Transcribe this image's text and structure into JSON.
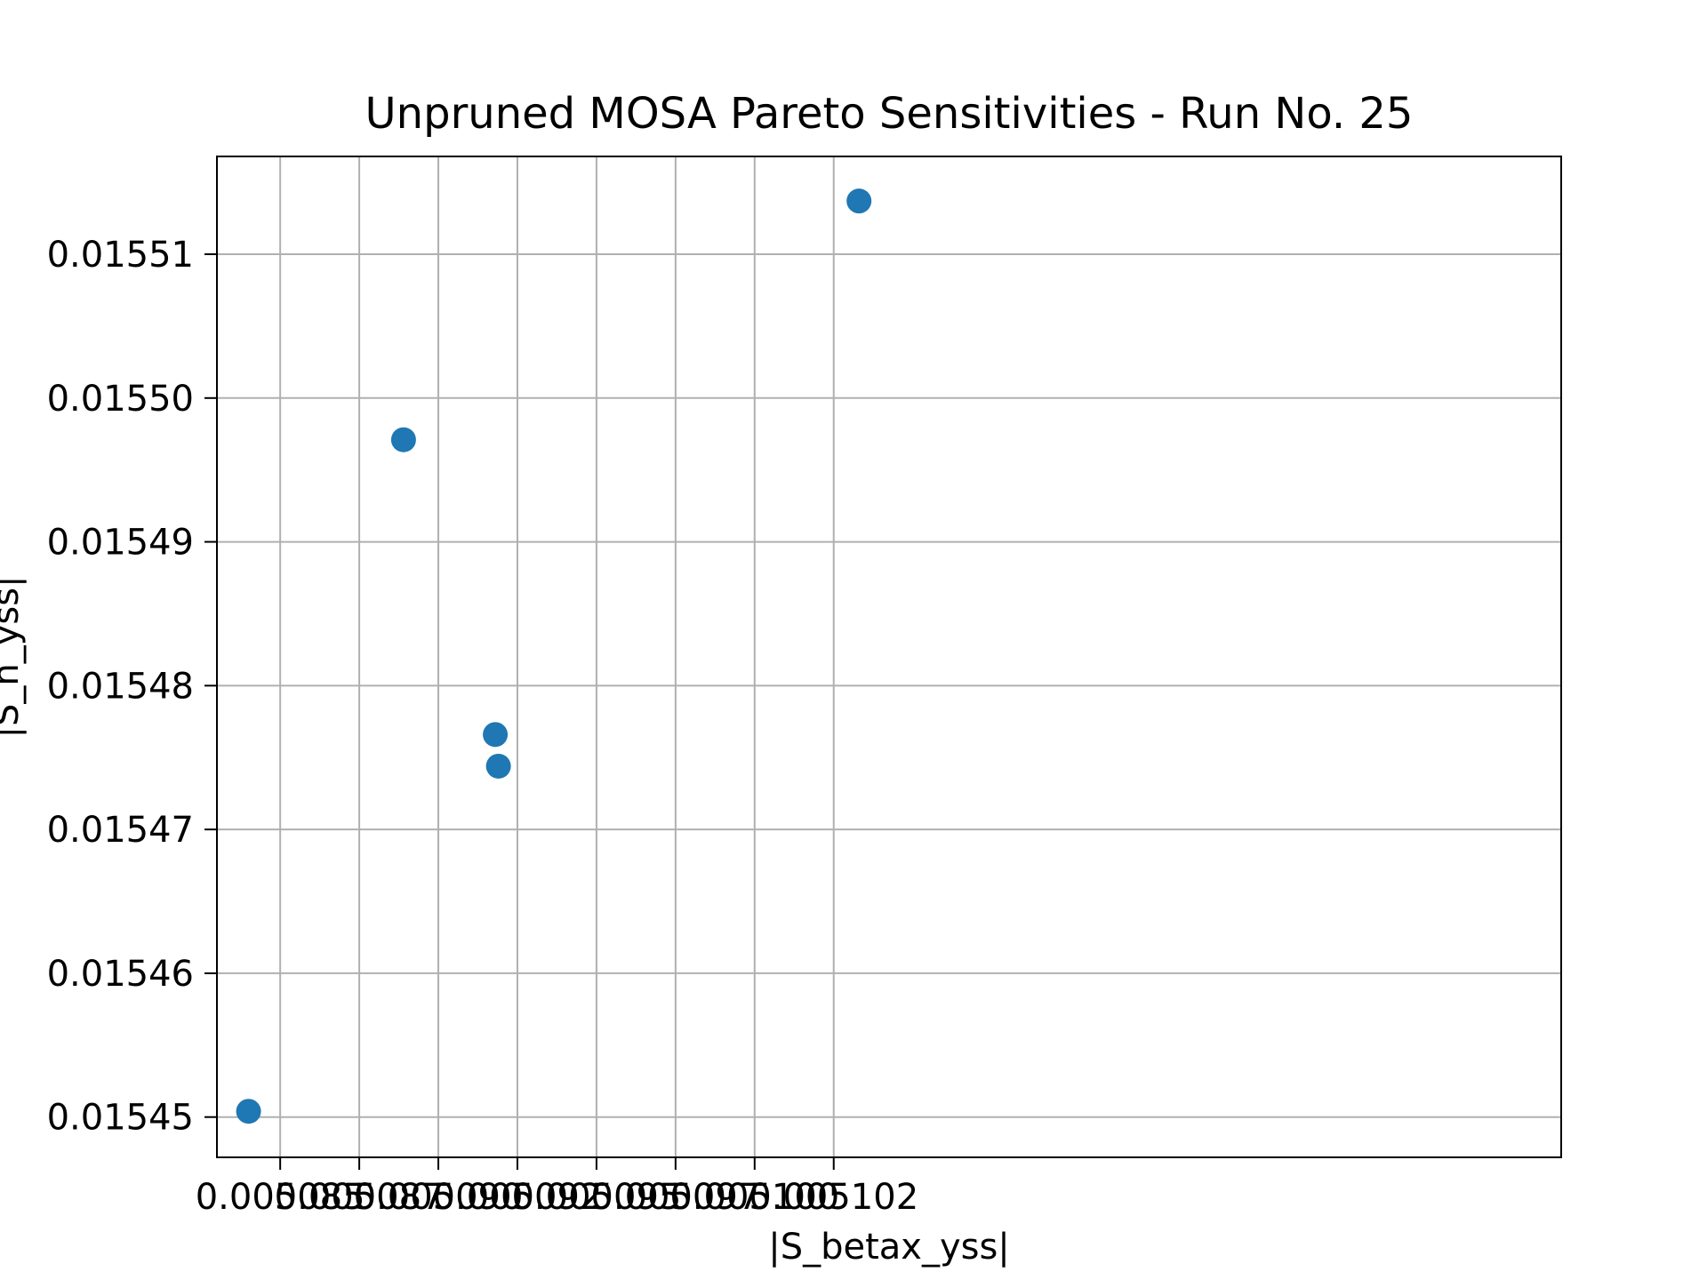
{
  "chart_data": {
    "type": "scatter",
    "title": "Unpruned MOSA Pareto Sensitivities - Run No. 25",
    "xlabel": "|S_betax_yss|",
    "ylabel": "|S_n_yss|",
    "xlim": [
      0.005083,
      0.0051255
    ],
    "ylim": [
      0.0154472,
      0.0155168
    ],
    "grid": true,
    "legend": "none",
    "color": "#1f77b4",
    "x_ticks": [
      0.005085,
      0.005088,
      0.00509,
      0.005092,
      0.005095,
      0.005098,
      0.0051,
      0.005102
    ],
    "x_tick_labels": [
      "0.005085",
      "0.005087",
      "0.005090",
      "0.005092",
      "0.005095",
      "0.005097",
      "0.005100",
      "0.005102"
    ],
    "x_tick_values": [
      0.005085,
      0.0050875,
      0.00509,
      0.0050925,
      0.005095,
      0.0050975,
      0.0051,
      0.0051025
    ],
    "y_tick_values": [
      0.01545,
      0.01546,
      0.01547,
      0.01548,
      0.01549,
      0.0155,
      0.01551
    ],
    "y_tick_labels": [
      "0.01545",
      "0.01546",
      "0.01547",
      "0.01548",
      "0.01549",
      "0.01550",
      "0.01551"
    ],
    "points": [
      {
        "x": 0.005084,
        "y": 0.0154504
      },
      {
        "x": 0.0050889,
        "y": 0.0154971
      },
      {
        "x": 0.0050918,
        "y": 0.0154766
      },
      {
        "x": 0.0050919,
        "y": 0.0154744
      },
      {
        "x": 0.0051033,
        "y": 0.0155137
      }
    ]
  }
}
